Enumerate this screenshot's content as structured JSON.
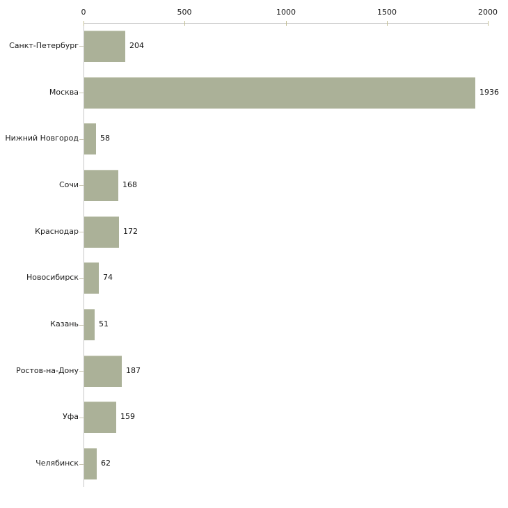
{
  "chart_data": {
    "type": "bar",
    "orientation": "horizontal",
    "title": "",
    "xlabel": "",
    "ylabel": "",
    "categories": [
      "Санкт-Петербург",
      "Москва",
      "Нижний Новгород",
      "Сочи",
      "Краснодар",
      "Новосибирск",
      "Казань",
      "Ростов-на-Дону",
      "Уфа",
      "Челябинск"
    ],
    "values": [
      204,
      1936,
      58,
      168,
      172,
      74,
      51,
      187,
      159,
      62
    ],
    "x_ticks": [
      0,
      500,
      1000,
      1500,
      2000
    ],
    "xlim": [
      0,
      2000
    ],
    "grid": "off",
    "legend": "none",
    "data_labels": "shown-right-of-bar",
    "colors": {
      "bar": "#abb198",
      "bar_top_edge": "#c6cab7",
      "axis_line": "#c6c6c6",
      "x_tick_mark": "#c3bf93",
      "y_tick_mark": "#c9c6b2",
      "text": "#1a1a1a",
      "background": "#ffffff"
    }
  }
}
